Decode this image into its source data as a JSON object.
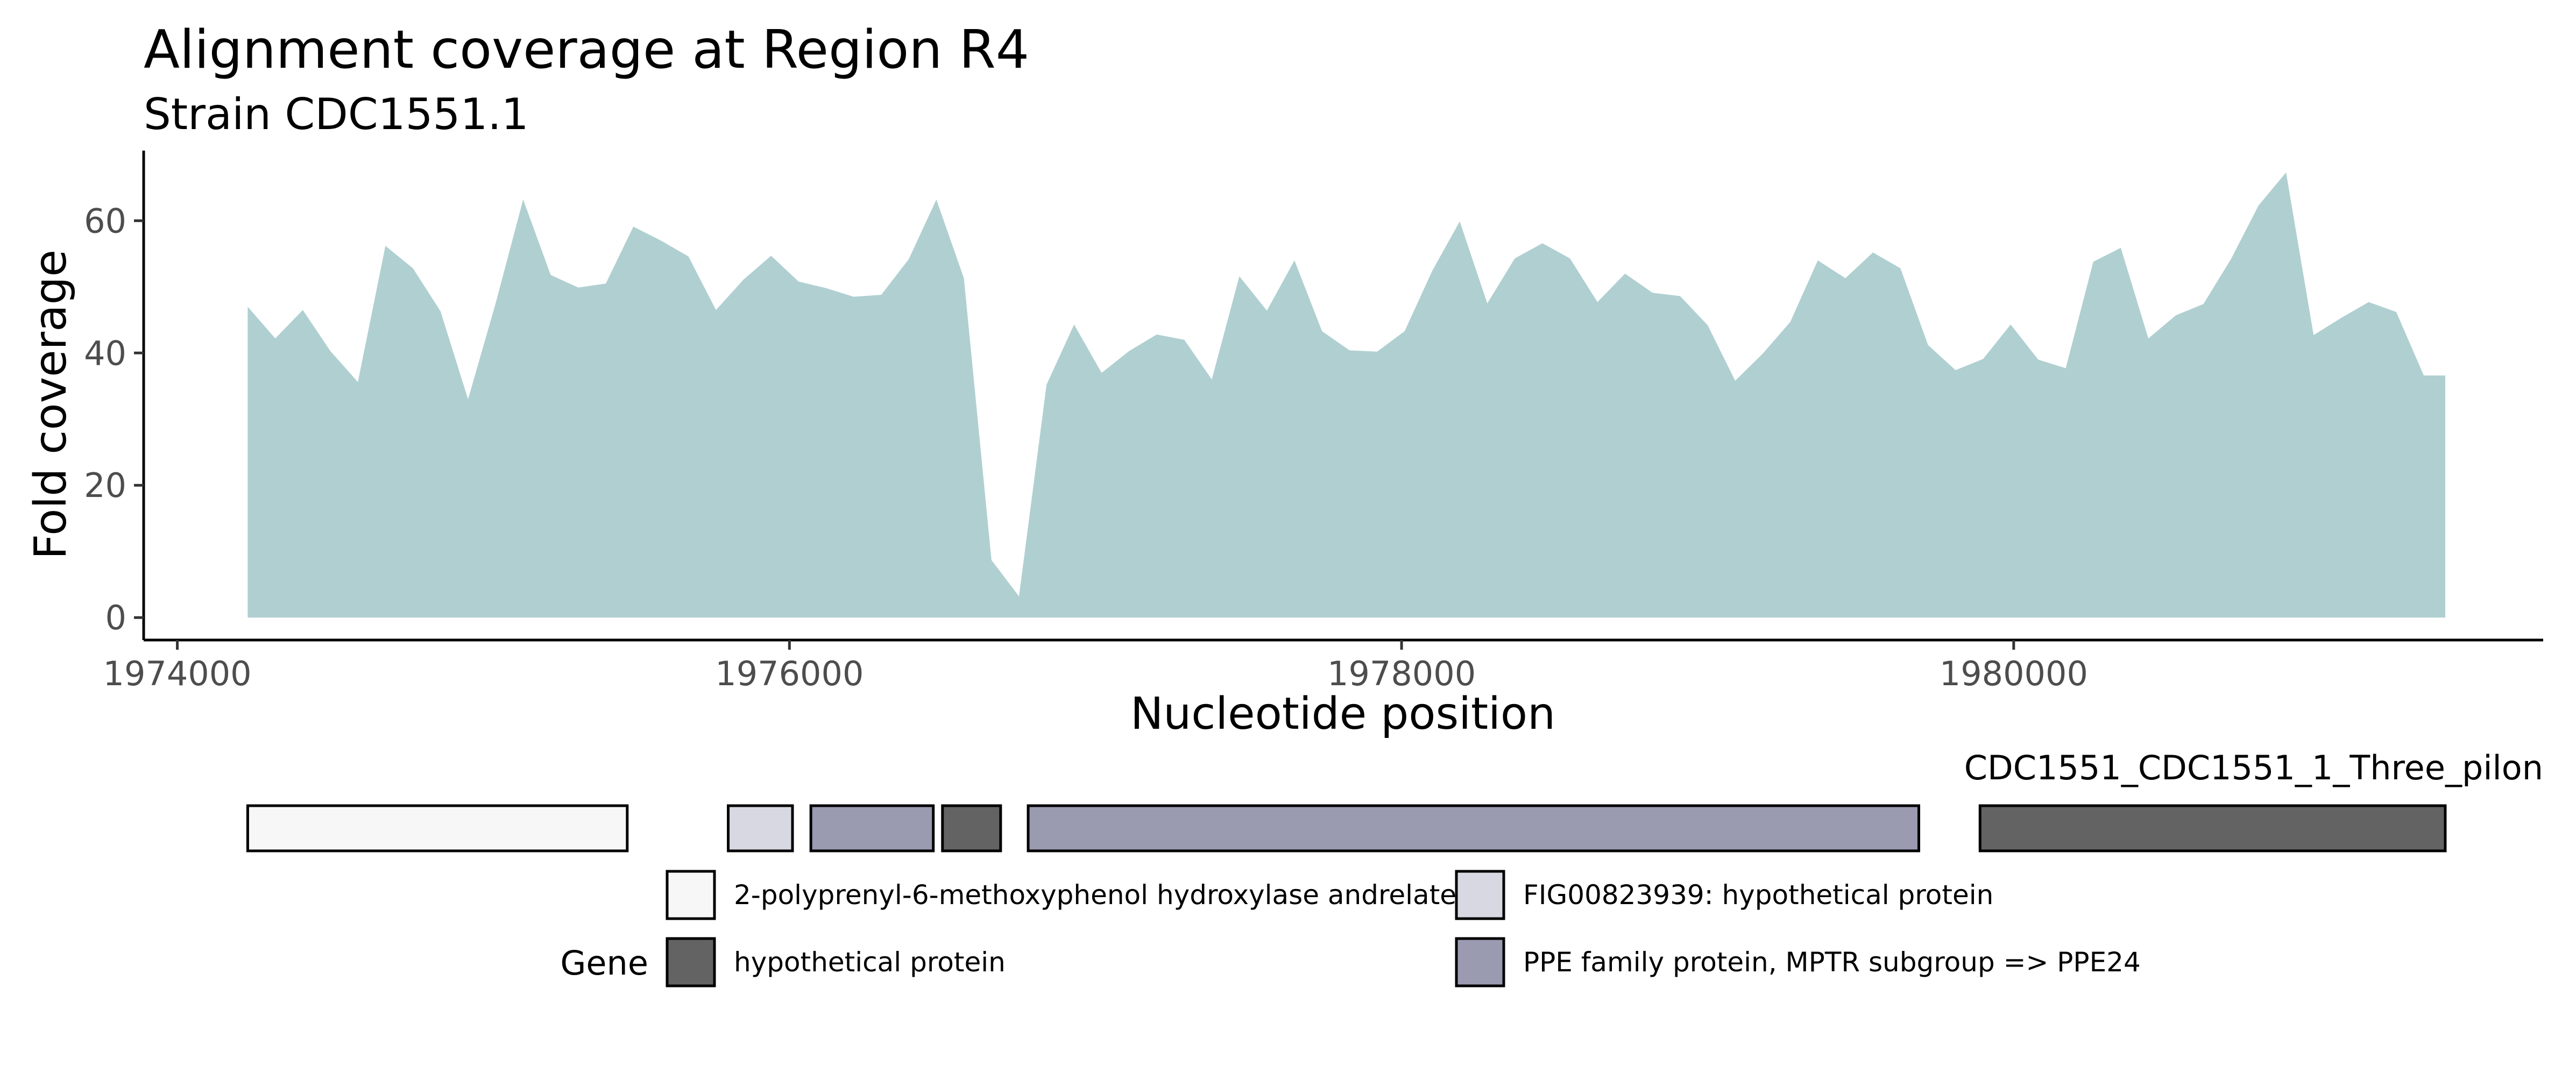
{
  "chart_data": {
    "type": "area",
    "title": "Alignment coverage at Region R4",
    "subtitle": "Strain CDC1551.1",
    "xlabel": "Nucleotide position",
    "ylabel": "Fold coverage",
    "xlim": [
      1973890,
      1981730
    ],
    "ylim": [
      -3.4,
      70.6
    ],
    "x_ticks": [
      1974000,
      1976000,
      1978000,
      1980000
    ],
    "x_tick_labels": [
      "1974000",
      "1976000",
      "1978000",
      "1980000"
    ],
    "y_ticks": [
      0,
      20,
      40,
      60
    ],
    "y_tick_labels": [
      "0",
      "20",
      "40",
      "60"
    ],
    "grid": false,
    "fill_color": "#b0cfd1",
    "series": [
      {
        "x": [
          1974230,
          1974320,
          1974410,
          1974500,
          1974590,
          1974680,
          1974770,
          1974860,
          1974950,
          1975040,
          1975130,
          1975220,
          1975310,
          1975400,
          1975490,
          1975580,
          1975670,
          1975760,
          1975850,
          1975940,
          1976030,
          1976120,
          1976210,
          1976300,
          1976390,
          1976480,
          1976570,
          1976660,
          1976750,
          1976840,
          1976930,
          1977020,
          1977110,
          1977200,
          1977290,
          1977380,
          1977470,
          1977560,
          1977650,
          1977740,
          1977830,
          1977920,
          1978010,
          1978100,
          1978190,
          1978280,
          1978370,
          1978460,
          1978550,
          1978640,
          1978730,
          1978820,
          1978910,
          1979000,
          1979090,
          1979180,
          1979270,
          1979360,
          1979450,
          1979540,
          1979630,
          1979720,
          1979810,
          1979900,
          1979990,
          1980080,
          1980170,
          1980260,
          1980350,
          1980440,
          1980530,
          1980620,
          1980710,
          1980800,
          1980890,
          1980980,
          1981070,
          1981160,
          1981250,
          1981340,
          1981410
        ],
        "y": [
          47,
          42.2,
          46.5,
          40.3,
          35.6,
          56.2,
          52.8,
          46.3,
          33.0,
          47.5,
          63.2,
          51.8,
          49.9,
          50.5,
          59.1,
          57.0,
          54.6,
          46.5,
          51.1,
          54.7,
          50.8,
          49.8,
          48.5,
          48.8,
          54.2,
          63.2,
          51.3,
          8.7,
          3.2,
          35.2,
          44.3,
          37.0,
          40.3,
          42.8,
          42.0,
          36.0,
          51.6,
          46.4,
          54.0,
          43.3,
          40.4,
          40.2,
          43.3,
          52.4,
          59.9,
          47.5,
          54.3,
          56.6,
          54.3,
          47.7,
          52.0,
          49.1,
          48.6,
          44.2,
          35.8,
          39.9,
          44.7,
          54.0,
          51.3,
          55.2,
          52.8,
          41.2,
          37.4,
          39.1,
          44.3,
          39.0,
          37.7,
          53.8,
          55.9,
          42.2,
          45.7,
          47.4,
          54.2,
          62.3,
          67.3,
          42.7,
          45.3,
          47.7,
          46.2,
          36.6,
          36.6
        ]
      }
    ],
    "gene_track": {
      "label": "CDC1551_CDC1551_1_Three_pilon",
      "genes": [
        {
          "start": 1974230,
          "end": 1975470,
          "gene": "2-polyprenyl-6-methoxyphenol hydroxylase andrelate"
        },
        {
          "start": 1975800,
          "end": 1976010,
          "gene": "FIG00823939: hypothetical protein"
        },
        {
          "start": 1976070,
          "end": 1976470,
          "gene": "PPE family protein, MPTR subgroup => PPE24"
        },
        {
          "start": 1976500,
          "end": 1976690,
          "gene": "hypothetical protein"
        },
        {
          "start": 1976780,
          "end": 1979690,
          "gene": "PPE family protein, MPTR subgroup => PPE24"
        },
        {
          "start": 1979890,
          "end": 1981410,
          "gene": "hypothetical protein"
        }
      ]
    },
    "legend": {
      "title": "Gene",
      "placement": "bottom",
      "entries": [
        {
          "label": "2-polyprenyl-6-methoxyphenol hydroxylase andrelate",
          "color": "#f7f7f7"
        },
        {
          "label": "FIG00823939: hypothetical protein",
          "color": "#d8d8e2"
        },
        {
          "label": "hypothetical protein",
          "color": "#636363"
        },
        {
          "label": "PPE family protein, MPTR subgroup => PPE24",
          "color": "#9a9ab1"
        }
      ]
    }
  }
}
